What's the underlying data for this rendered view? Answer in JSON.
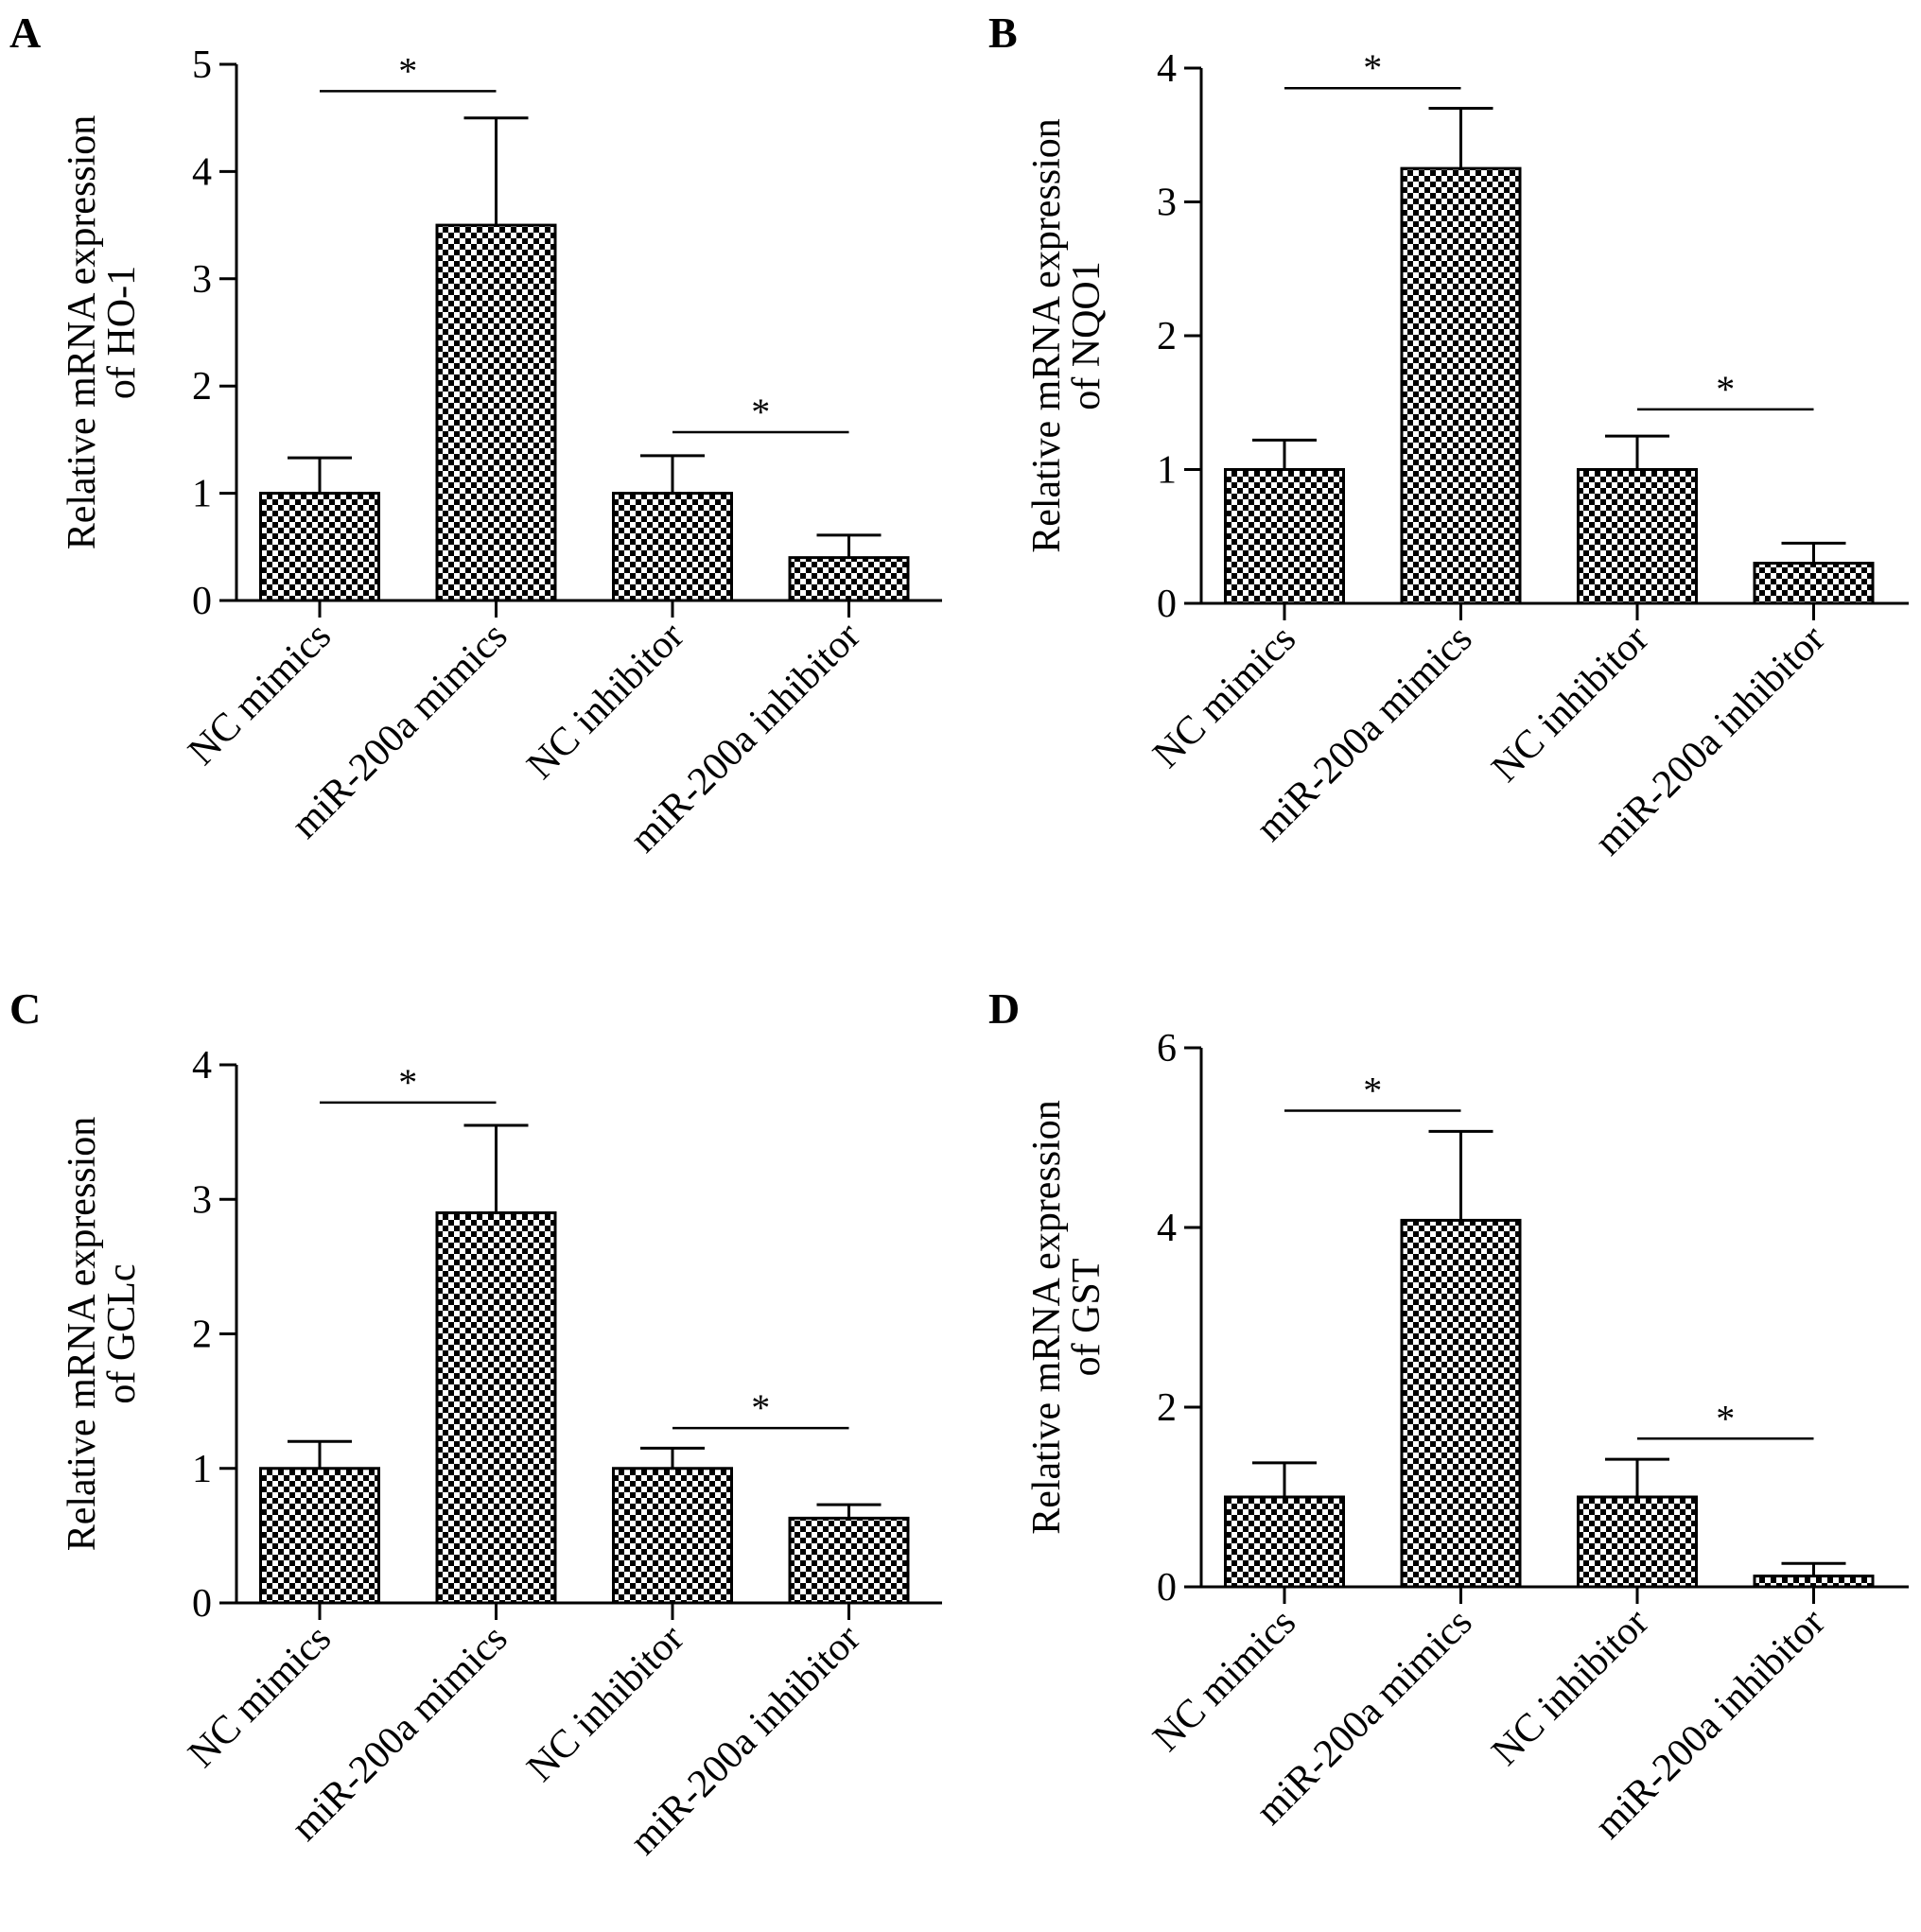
{
  "chart_data": [
    {
      "panel": "A",
      "type": "bar",
      "ylabel": [
        "Relative mRNA expression",
        "of HO-1"
      ],
      "categories": [
        "NC mimics",
        "miR-200a mimics",
        "NC inhibitor",
        "miR-200a inhibitor"
      ],
      "values": [
        1.0,
        3.5,
        1.0,
        0.4
      ],
      "error": [
        0.33,
        1.0,
        0.35,
        0.21
      ],
      "ylim": [
        0,
        5
      ],
      "yticks": [
        0,
        1,
        2,
        3,
        4,
        5
      ],
      "significance": [
        {
          "from": 0,
          "to": 1,
          "y": 4.75,
          "label": "*"
        },
        {
          "from": 2,
          "to": 3,
          "y": 1.57,
          "label": "*"
        }
      ]
    },
    {
      "panel": "B",
      "type": "bar",
      "ylabel": [
        "Relative mRNA expression",
        "of NQO1"
      ],
      "categories": [
        "NC mimics",
        "miR-200a mimics",
        "NC inhibitor",
        "miR-200a inhibitor"
      ],
      "values": [
        1.0,
        3.25,
        1.0,
        0.3
      ],
      "error": [
        0.22,
        0.45,
        0.25,
        0.15
      ],
      "ylim": [
        0,
        4
      ],
      "yticks": [
        0,
        1,
        2,
        3,
        4
      ],
      "significance": [
        {
          "from": 0,
          "to": 1,
          "y": 3.85,
          "label": "*"
        },
        {
          "from": 2,
          "to": 3,
          "y": 1.45,
          "label": "*"
        }
      ]
    },
    {
      "panel": "C",
      "type": "bar",
      "ylabel": [
        "Relative mRNA expression",
        "of GCLc"
      ],
      "categories": [
        "NC mimics",
        "miR-200a mimics",
        "NC inhibitor",
        "miR-200a inhibitor"
      ],
      "values": [
        1.0,
        2.9,
        1.0,
        0.63
      ],
      "error": [
        0.2,
        0.65,
        0.15,
        0.1
      ],
      "ylim": [
        0,
        4
      ],
      "yticks": [
        0,
        1,
        2,
        3,
        4
      ],
      "significance": [
        {
          "from": 0,
          "to": 1,
          "y": 3.72,
          "label": "*"
        },
        {
          "from": 2,
          "to": 3,
          "y": 1.3,
          "label": "*"
        }
      ]
    },
    {
      "panel": "D",
      "type": "bar",
      "ylabel": [
        "Relative mRNA expression",
        "of GST"
      ],
      "categories": [
        "NC mimics",
        "miR-200a mimics",
        "NC inhibitor",
        "miR-200a inhibitor"
      ],
      "values": [
        1.0,
        4.08,
        1.0,
        0.12
      ],
      "error": [
        0.38,
        0.99,
        0.42,
        0.14
      ],
      "ylim": [
        0,
        6
      ],
      "yticks": [
        0,
        2,
        4,
        6
      ],
      "significance": [
        {
          "from": 0,
          "to": 1,
          "y": 5.3,
          "label": "*"
        },
        {
          "from": 2,
          "to": 3,
          "y": 1.65,
          "label": "*"
        }
      ]
    }
  ],
  "colors": {
    "bar_pattern": "checkerboard black/white",
    "axis": "#000000"
  }
}
